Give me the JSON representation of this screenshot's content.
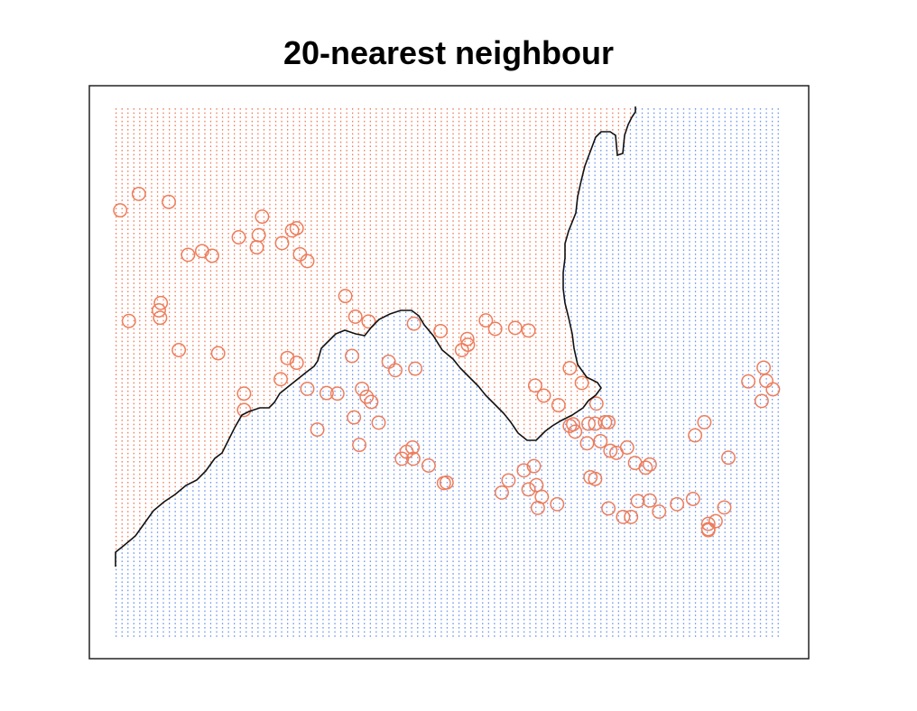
{
  "chart_data": {
    "type": "scatter",
    "title": "20-nearest neighbour",
    "xlabel": "",
    "ylabel": "",
    "axes_visible": false,
    "xlim": [
      0,
      1
    ],
    "ylim": [
      0,
      1
    ],
    "grid": "dense dotted background grid colored by predicted class",
    "colors": {
      "class_0": "#ee7d5c",
      "class_1": "#6f97ee",
      "boundary": "#000000"
    },
    "series": [
      {
        "class": "class_0",
        "x": [
          0.007,
          0.035,
          0.08,
          0.109,
          0.13,
          0.145,
          0.185,
          0.212,
          0.22,
          0.215,
          0.25,
          0.272,
          0.265,
          0.277,
          0.288,
          0.345,
          0.36,
          0.38,
          0.355,
          0.37,
          0.377,
          0.384,
          0.41,
          0.42,
          0.45,
          0.448,
          0.488,
          0.52,
          0.528,
          0.529,
          0.556,
          0.57,
          0.6,
          0.62,
          0.63,
          0.643,
          0.665,
          0.682,
          0.7,
          0.722,
          0.71,
          0.682,
          0.687,
          0.69,
          0.72,
          0.735,
          0.74,
          0.708,
          0.728,
          0.743,
          0.752,
          0.768,
          0.796,
          0.78,
          0.802,
          0.87,
          0.884,
          0.92,
          0.977,
          0.973,
          0.95,
          0.97,
          0.987,
          0.067,
          0.065,
          0.068,
          0.02,
          0.095,
          0.154,
          0.193,
          0.193,
          0.248,
          0.272,
          0.258,
          0.317,
          0.333,
          0.288,
          0.358,
          0.303,
          0.395,
          0.366,
          0.43,
          0.437,
          0.447,
          0.446,
          0.47,
          0.493,
          0.497,
          0.58,
          0.59,
          0.613,
          0.628,
          0.62,
          0.632,
          0.64,
          0.634,
          0.663,
          0.713,
          0.72,
          0.74,
          0.762,
          0.784,
          0.774,
          0.802,
          0.816,
          0.843,
          0.867,
          0.89,
          0.914,
          0.901,
          0.89,
          0.89
        ],
        "y": [
          0.804,
          0.835,
          0.82,
          0.72,
          0.727,
          0.718,
          0.753,
          0.734,
          0.792,
          0.757,
          0.742,
          0.77,
          0.766,
          0.721,
          0.708,
          0.642,
          0.603,
          0.594,
          0.529,
          0.467,
          0.452,
          0.442,
          0.518,
          0.502,
          0.505,
          0.59,
          0.576,
          0.54,
          0.561,
          0.55,
          0.596,
          0.58,
          0.582,
          0.577,
          0.473,
          0.454,
          0.436,
          0.506,
          0.478,
          0.439,
          0.401,
          0.397,
          0.4,
          0.386,
          0.401,
          0.404,
          0.404,
          0.364,
          0.368,
          0.35,
          0.346,
          0.356,
          0.318,
          0.327,
          0.324,
          0.379,
          0.404,
          0.337,
          0.482,
          0.507,
          0.481,
          0.444,
          0.466,
          0.601,
          0.615,
          0.629,
          0.595,
          0.54,
          0.534,
          0.458,
          0.427,
          0.485,
          0.516,
          0.525,
          0.459,
          0.458,
          0.467,
          0.413,
          0.39,
          0.403,
          0.361,
          0.335,
          0.348,
          0.335,
          0.356,
          0.322,
          0.289,
          0.29,
          0.271,
          0.294,
          0.313,
          0.321,
          0.277,
          0.285,
          0.263,
          0.242,
          0.249,
          0.3,
          0.297,
          0.241,
          0.225,
          0.255,
          0.225,
          0.256,
          0.235,
          0.249,
          0.259,
          0.212,
          0.243,
          0.217,
          0.202,
          0.2
        ]
      }
    ]
  }
}
